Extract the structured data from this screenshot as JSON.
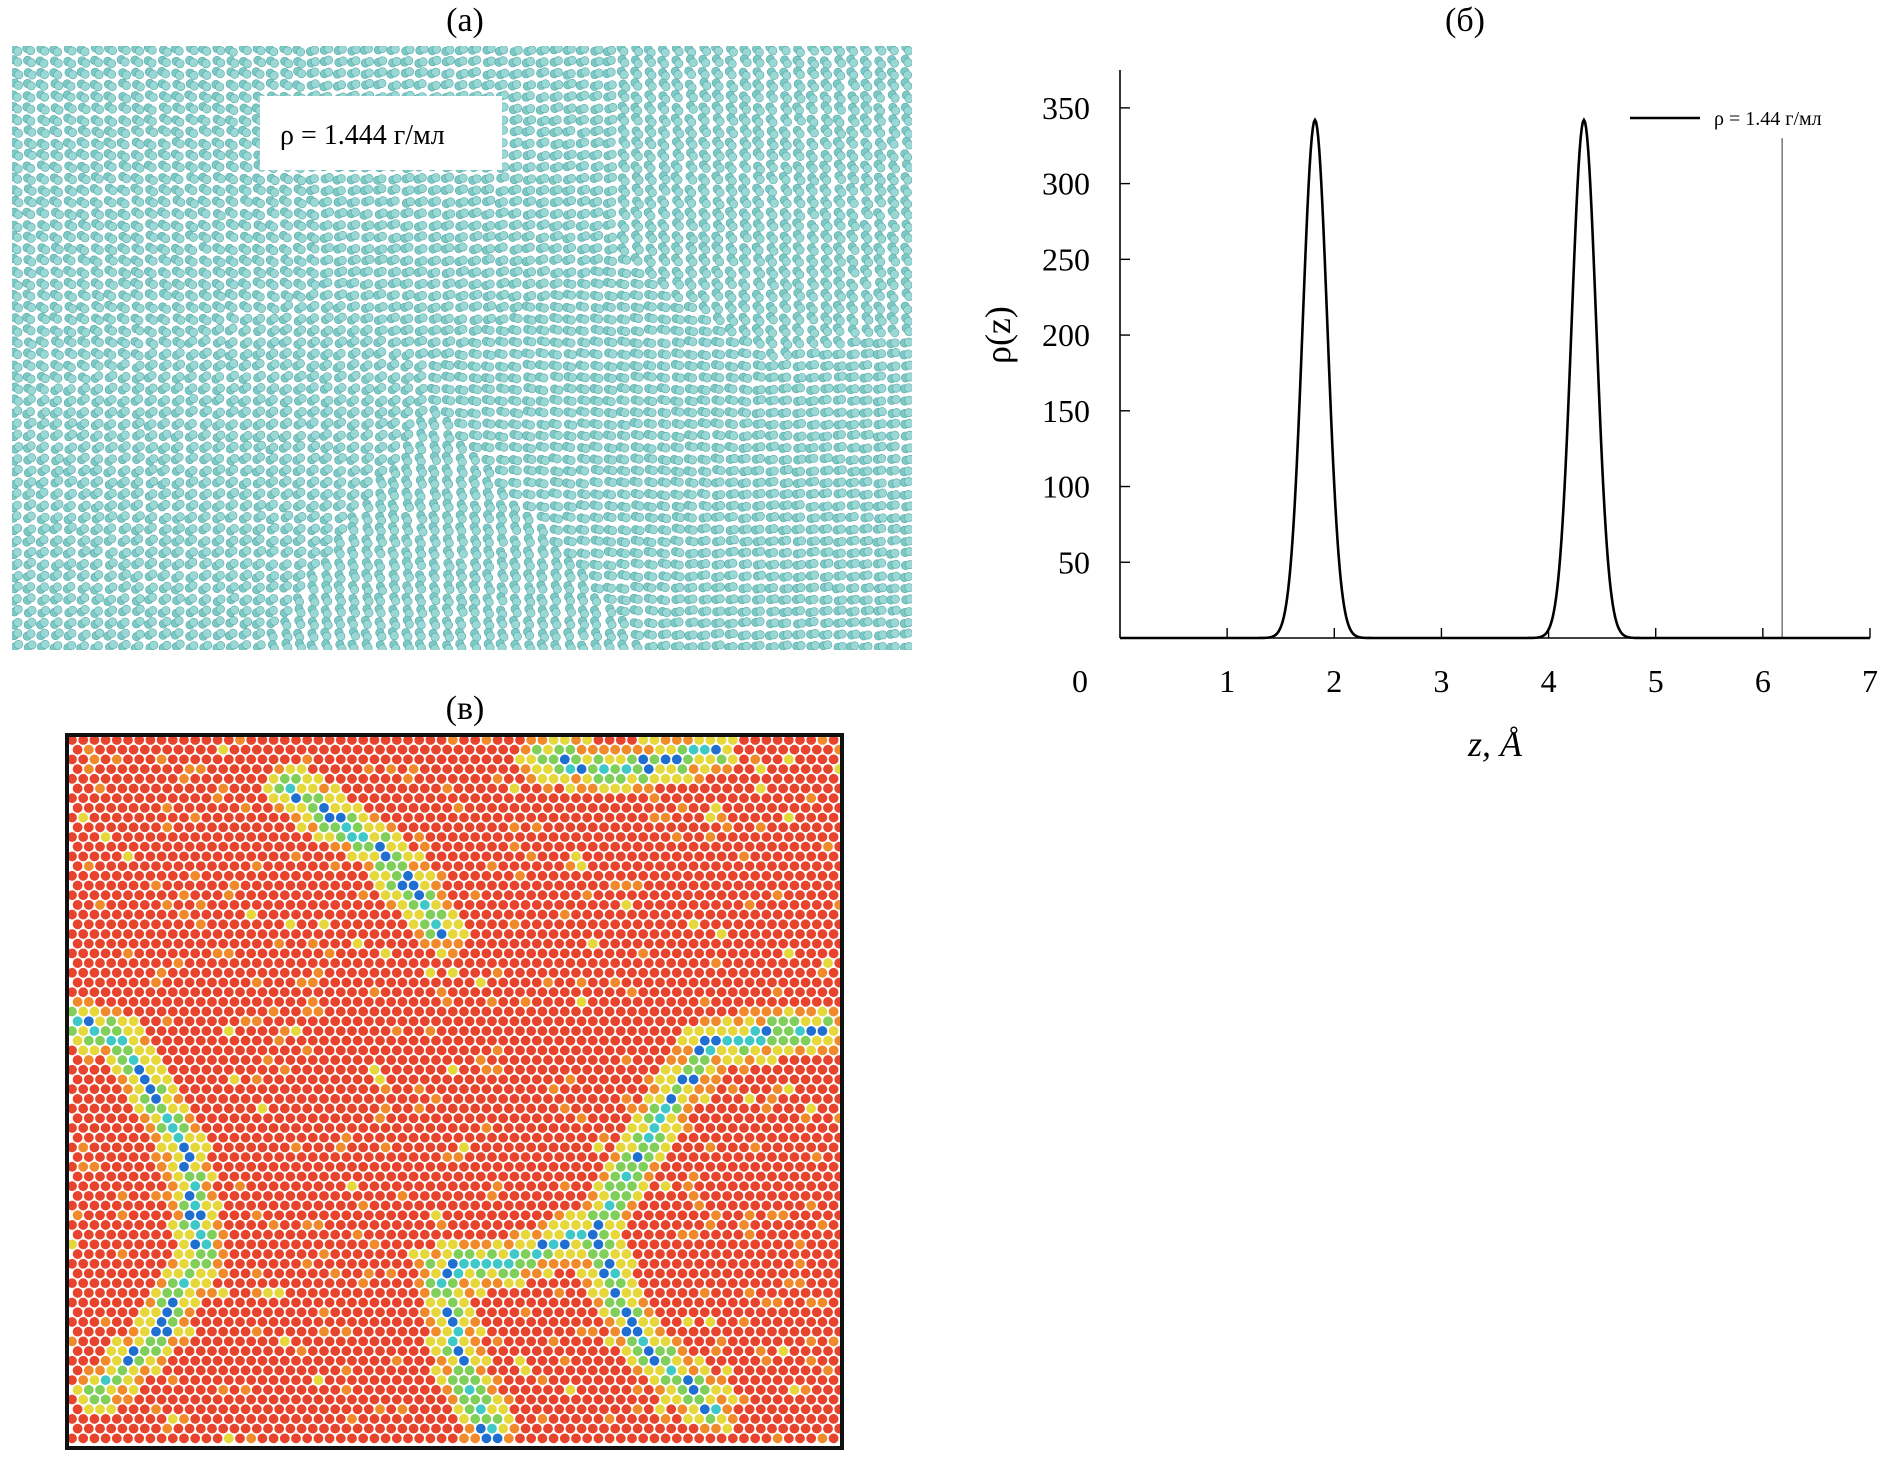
{
  "panels": {
    "a": {
      "label": "(а)",
      "annotation": "ρ = 1.444 г/мл",
      "particle_color": "#7cc9c6"
    },
    "b": {
      "label": "(б)"
    },
    "v": {
      "label": "(в)",
      "colors": {
        "dominant": "#e8432c",
        "orange": "#f08a2a",
        "yellow": "#e6d83a",
        "green": "#7fcf5a",
        "cyan": "#3fc8c8",
        "blue": "#1f6fd0"
      }
    }
  },
  "chart_data": {
    "type": "line",
    "title": "",
    "xlabel": "z, Å",
    "ylabel": "ρ(z)",
    "xlim": [
      0,
      7
    ],
    "ylim": [
      0,
      375
    ],
    "x_ticks": [
      "0",
      "1",
      "2",
      "3",
      "4",
      "5",
      "6",
      "7"
    ],
    "y_ticks": [
      "50",
      "100",
      "150",
      "200",
      "250",
      "300",
      "350"
    ],
    "grid": false,
    "legend_position": "top-right",
    "series": [
      {
        "name": "ρ = 1.44 г/мл",
        "color": "#000000",
        "peaks": [
          {
            "center": 1.82,
            "height": 342,
            "sigma": 0.115
          },
          {
            "center": 4.33,
            "height": 342,
            "sigma": 0.115
          }
        ]
      }
    ],
    "vertical_line_x": 6.18
  }
}
